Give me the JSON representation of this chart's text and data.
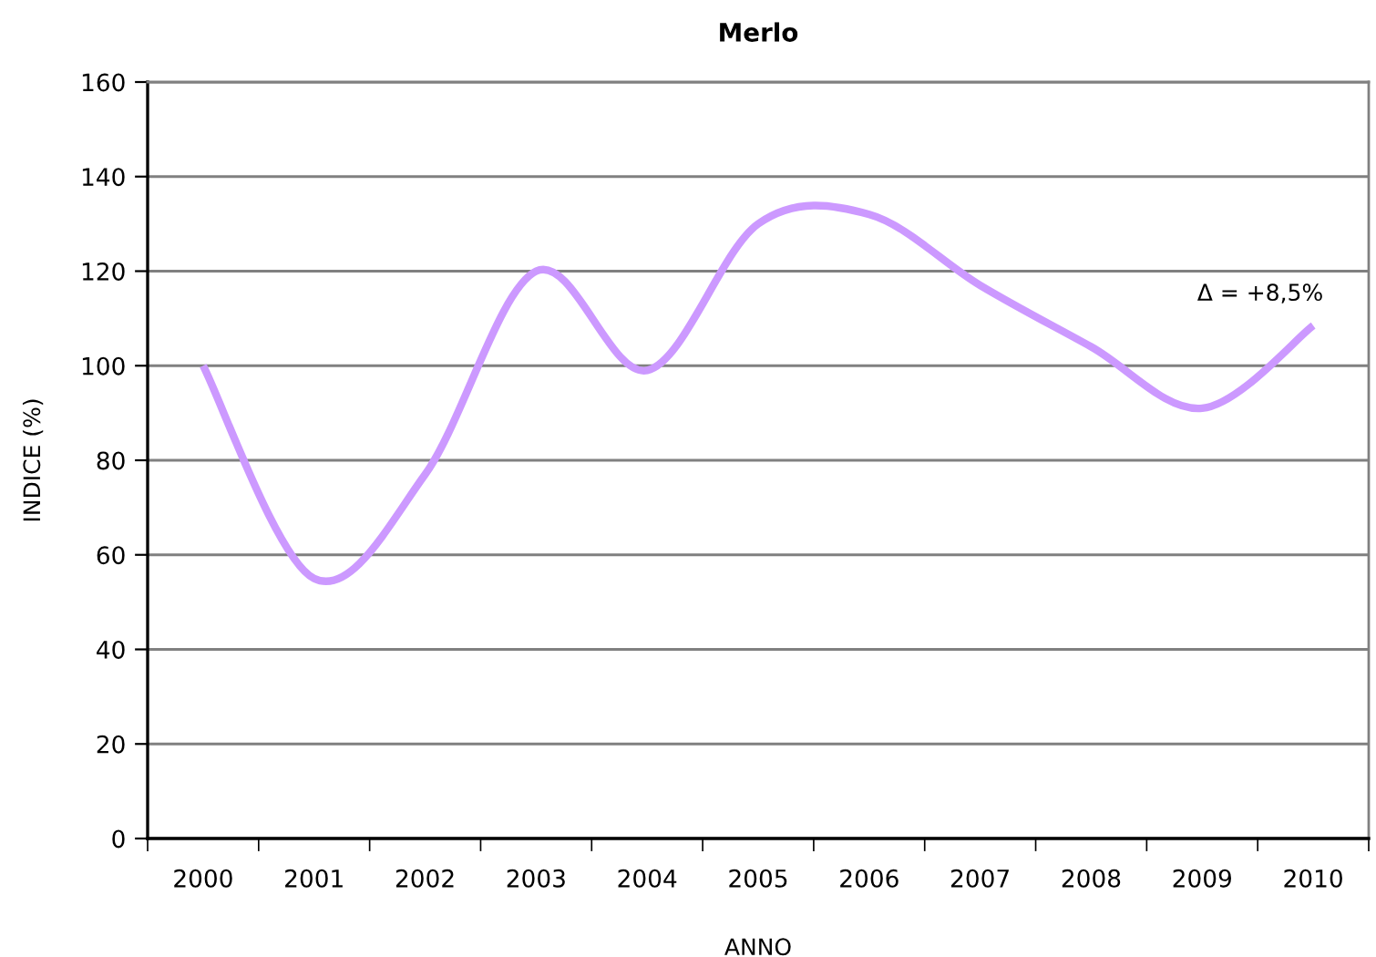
{
  "chart_data": {
    "type": "line",
    "title": "Merlo",
    "xlabel": "ANNO",
    "ylabel": "INDICE (%)",
    "categories": [
      "2000",
      "2001",
      "2002",
      "2003",
      "2004",
      "2005",
      "2006",
      "2007",
      "2008",
      "2009",
      "2010"
    ],
    "series": [
      {
        "color": "#cc99ff",
        "values": [
          100,
          55,
          77,
          120,
          99,
          130,
          132,
          117,
          104,
          91,
          108.5
        ]
      }
    ],
    "ylim": [
      0,
      160
    ],
    "yticks": [
      0,
      20,
      40,
      60,
      80,
      100,
      120,
      140,
      160
    ],
    "grid": "y",
    "line_style": "solid",
    "annotations": [
      {
        "text": "Δ = +8,5%",
        "x": "2010",
        "y": 108.5
      }
    ]
  }
}
